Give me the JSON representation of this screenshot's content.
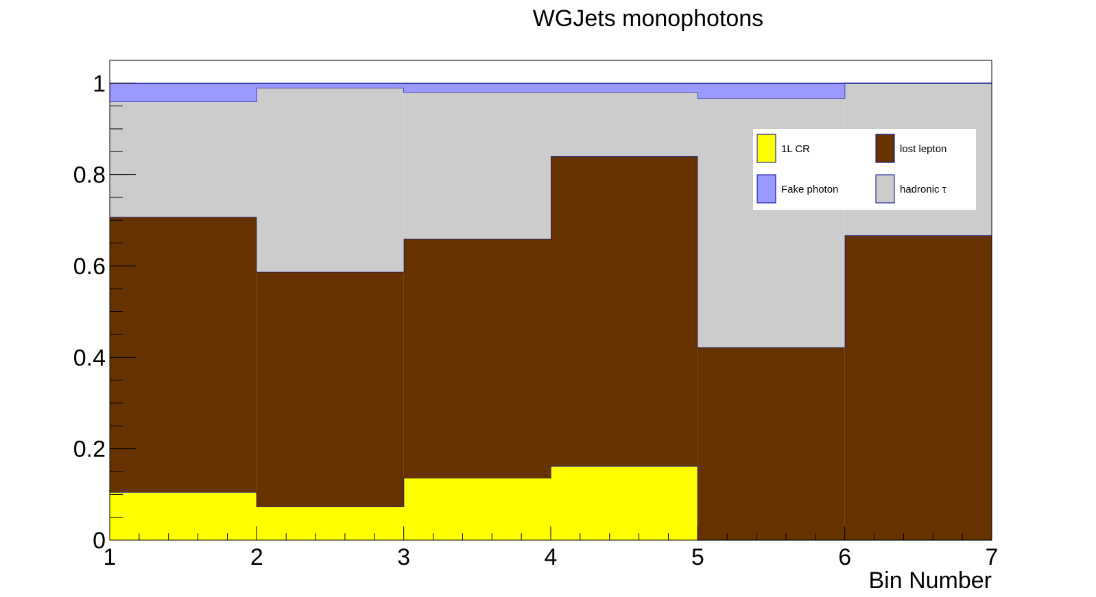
{
  "chart_data": {
    "type": "stacked-histogram",
    "title": "WGJets monophotons",
    "xlabel": "Bin Number",
    "ylabel": "",
    "xlim": [
      1,
      7
    ],
    "ylim": [
      0,
      1.05
    ],
    "x_ticks": [
      1,
      2,
      3,
      4,
      5,
      6,
      7
    ],
    "x_tick_labels": [
      "1",
      "2",
      "3",
      "4",
      "5",
      "6",
      "7"
    ],
    "y_ticks": [
      0,
      0.2,
      0.4,
      0.6,
      0.8,
      1
    ],
    "y_tick_labels": [
      "0",
      "0.2",
      "0.4",
      "0.6",
      "0.8",
      "1"
    ],
    "bin_edges": [
      1,
      2,
      3,
      4,
      5,
      6,
      7
    ],
    "series": [
      {
        "name": "1L CR",
        "color": "#ffff00",
        "values": [
          0.105,
          0.073,
          0.136,
          0.162,
          0.0,
          0.0
        ]
      },
      {
        "name": "lost lepton",
        "color": "#663300",
        "values": [
          0.602,
          0.514,
          0.523,
          0.678,
          0.422,
          0.667
        ]
      },
      {
        "name": "hadronic τ",
        "color": "#cccccc",
        "values": [
          0.253,
          0.403,
          0.321,
          0.14,
          0.545,
          0.333
        ]
      },
      {
        "name": "Fake photon",
        "color": "#9999ff",
        "values": [
          0.04,
          0.01,
          0.02,
          0.02,
          0.033,
          0.0
        ]
      }
    ],
    "legend": {
      "position": "top-right",
      "order": [
        "1L CR",
        "lost lepton",
        "Fake photon",
        "hadronic τ"
      ]
    },
    "grid": false
  }
}
